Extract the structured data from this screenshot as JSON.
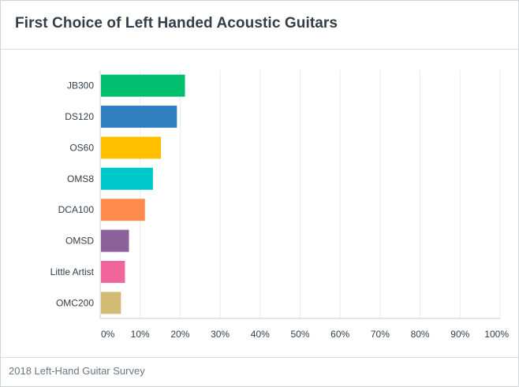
{
  "title": "First Choice of Left Handed Acoustic Guitars",
  "footer": "2018 Left-Hand Guitar Survey",
  "chart_data": {
    "type": "bar",
    "orientation": "horizontal",
    "categories": [
      "JB300",
      "DS120",
      "OS60",
      "OMS8",
      "DCA100",
      "OMSD",
      "Little Artist",
      "OMC200"
    ],
    "values": [
      21,
      19,
      15,
      13,
      11,
      7,
      6,
      5
    ],
    "colors": [
      "#00bf6f",
      "#2f7fbf",
      "#ffc000",
      "#00c9cc",
      "#ff8b4f",
      "#8c6099",
      "#f0659a",
      "#d2bc75"
    ],
    "xlim": [
      0,
      100
    ],
    "xticks": [
      0,
      10,
      20,
      30,
      40,
      50,
      60,
      70,
      80,
      90,
      100
    ],
    "xtick_labels": [
      "0%",
      "10%",
      "20%",
      "30%",
      "40%",
      "50%",
      "60%",
      "70%",
      "80%",
      "90%",
      "100%"
    ],
    "grid": true,
    "grid_color": "#e8eaed",
    "axis_color": "#c9ced3"
  }
}
